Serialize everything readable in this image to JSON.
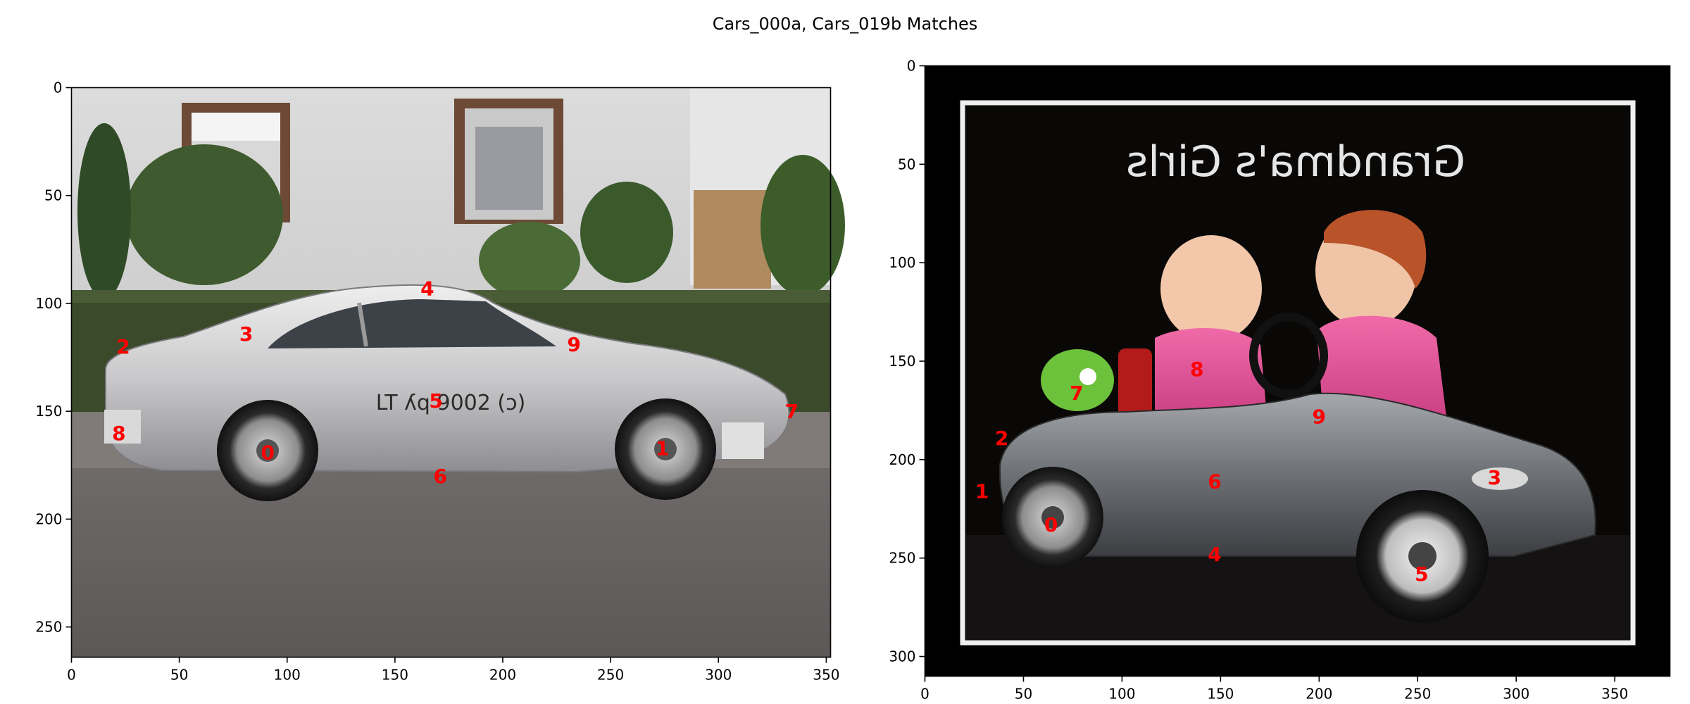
{
  "figure": {
    "title": "Cars_000a, Cars_019b Matches"
  },
  "chart_data": [
    {
      "type": "scatter",
      "title": "",
      "xlabel": "",
      "ylabel": "",
      "xlim": [
        0,
        352
      ],
      "ylim": [
        264,
        0
      ],
      "grid": false,
      "legend": "none",
      "xticks": [
        0,
        50,
        100,
        150,
        200,
        250,
        300,
        350
      ],
      "yticks": [
        0,
        50,
        100,
        150,
        200,
        250
      ],
      "image": "Cars_000a",
      "image_description": "silver sports car parked on a street in front of a house with hedges",
      "points": [
        {
          "label": "0",
          "x": 91,
          "y": 169
        },
        {
          "label": "1",
          "x": 274,
          "y": 167
        },
        {
          "label": "2",
          "x": 24,
          "y": 120
        },
        {
          "label": "3",
          "x": 81,
          "y": 114
        },
        {
          "label": "4",
          "x": 165,
          "y": 93
        },
        {
          "label": "5",
          "x": 169,
          "y": 145
        },
        {
          "label": "6",
          "x": 171,
          "y": 180
        },
        {
          "label": "7",
          "x": 334,
          "y": 150
        },
        {
          "label": "8",
          "x": 22,
          "y": 160
        },
        {
          "label": "9",
          "x": 233,
          "y": 119
        }
      ]
    },
    {
      "type": "scatter",
      "title": "",
      "xlabel": "",
      "ylabel": "",
      "xlim": [
        0,
        378
      ],
      "ylim": [
        310,
        0
      ],
      "grid": false,
      "legend": "none",
      "xticks": [
        0,
        50,
        100,
        150,
        200,
        250,
        300,
        350
      ],
      "yticks": [
        0,
        50,
        100,
        150,
        200,
        250,
        300
      ],
      "image": "Cars_019b",
      "image_description": "two children in a grey toy car inside a black and white picture frame",
      "image_caption": "Grandma's Girls",
      "points": [
        {
          "label": "0",
          "x": 64,
          "y": 233
        },
        {
          "label": "1",
          "x": 29,
          "y": 216
        },
        {
          "label": "2",
          "x": 39,
          "y": 189
        },
        {
          "label": "3",
          "x": 289,
          "y": 209
        },
        {
          "label": "4",
          "x": 147,
          "y": 248
        },
        {
          "label": "5",
          "x": 252,
          "y": 258
        },
        {
          "label": "6",
          "x": 147,
          "y": 211
        },
        {
          "label": "7",
          "x": 77,
          "y": 166
        },
        {
          "label": "8",
          "x": 138,
          "y": 154
        },
        {
          "label": "9",
          "x": 200,
          "y": 178
        }
      ]
    }
  ],
  "colors": {
    "marker": "#ff0000",
    "axes": "#000000",
    "background": "#ffffff"
  }
}
